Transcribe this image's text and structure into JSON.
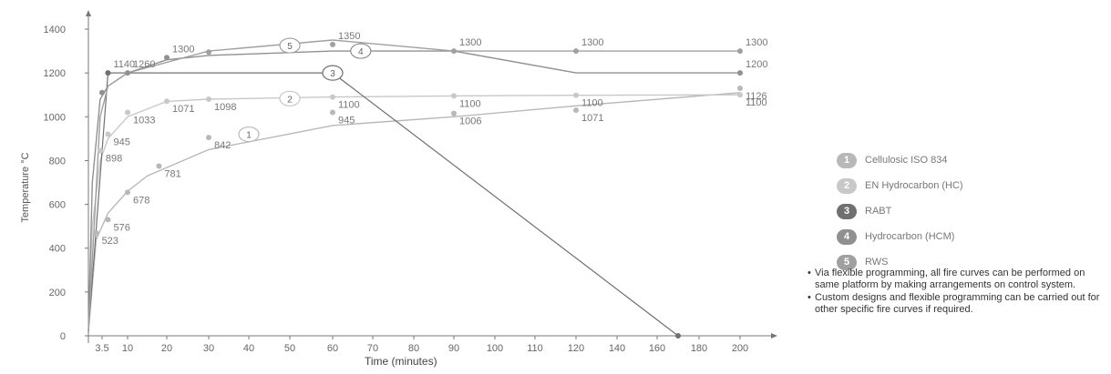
{
  "chart_data": {
    "type": "line",
    "xlabel": "Time (minutes)",
    "ylabel": "Temperature °C",
    "xlim": [
      0,
      210
    ],
    "ylim": [
      0,
      1400
    ],
    "x_ticks": [
      "3.5",
      "10",
      "20",
      "30",
      "40",
      "50",
      "60",
      "70",
      "80",
      "90",
      "100",
      "110",
      "120",
      "140",
      "160",
      "180",
      "200"
    ],
    "y_ticks": [
      "0",
      "200",
      "400",
      "600",
      "800",
      "1000",
      "1200",
      "1400"
    ],
    "series": [
      {
        "name": "Cellulosic ISO 834",
        "badge": "1",
        "color": "#b8b8b8",
        "x": [
          0,
          2,
          5,
          10,
          15,
          30,
          60,
          90,
          120,
          200
        ],
        "y": [
          20,
          440,
          560,
          660,
          730,
          850,
          960,
          1000,
          1050,
          1110
        ],
        "points": [
          {
            "x": 2,
            "y": 470,
            "label": "523"
          },
          {
            "x": 5,
            "y": 530,
            "label": "576"
          },
          {
            "x": 10,
            "y": 655,
            "label": "678"
          },
          {
            "x": 18,
            "y": 775,
            "label": "781"
          },
          {
            "x": 30,
            "y": 905,
            "label": "842"
          },
          {
            "x": 60,
            "y": 1020,
            "label": "945"
          },
          {
            "x": 90,
            "y": 1015,
            "label": "1006"
          },
          {
            "x": 120,
            "y": 1030,
            "label": "1071"
          },
          {
            "x": 200,
            "y": 1130,
            "label": "1126"
          }
        ]
      },
      {
        "name": "EN Hydrocarbon (HC)",
        "badge": "2",
        "color": "#c8c8c8",
        "x": [
          0,
          1,
          3,
          5,
          10,
          20,
          30,
          60,
          90,
          120,
          200
        ],
        "y": [
          20,
          500,
          800,
          900,
          1000,
          1070,
          1080,
          1090,
          1095,
          1098,
          1100
        ],
        "points": [
          {
            "x": 3,
            "y": 845,
            "label": "898"
          },
          {
            "x": 5,
            "y": 920,
            "label": "945"
          },
          {
            "x": 10,
            "y": 1020,
            "label": "1033"
          },
          {
            "x": 20,
            "y": 1071,
            "label": "1071"
          },
          {
            "x": 30,
            "y": 1080,
            "label": "1098"
          },
          {
            "x": 60,
            "y": 1090,
            "label": "1100"
          },
          {
            "x": 90,
            "y": 1095,
            "label": "1100"
          },
          {
            "x": 120,
            "y": 1098,
            "label": "1100"
          },
          {
            "x": 200,
            "y": 1100,
            "label": "1100"
          }
        ]
      },
      {
        "name": "RABT",
        "badge": "3",
        "color": "#707070",
        "x": [
          0,
          5,
          60,
          170
        ],
        "y": [
          20,
          1200,
          1200,
          0
        ],
        "points": [
          {
            "x": 5,
            "y": 1200,
            "label": "1140"
          },
          {
            "x": 170,
            "y": 0,
            "label": ""
          }
        ]
      },
      {
        "name": "Hydrocarbon (HCM)",
        "badge": "4",
        "color": "#909090",
        "x": [
          0,
          1,
          3,
          5,
          10,
          20,
          30,
          60,
          90,
          120,
          200
        ],
        "y": [
          20,
          700,
          1080,
          1140,
          1200,
          1260,
          1280,
          1300,
          1300,
          1200,
          1200
        ],
        "points": [
          {
            "x": 3.5,
            "y": 1110,
            "label": ""
          },
          {
            "x": 10,
            "y": 1200,
            "label": "1260"
          },
          {
            "x": 20,
            "y": 1270,
            "label": "1300"
          },
          {
            "x": 200,
            "y": 1200,
            "label": "1200"
          }
        ]
      },
      {
        "name": "RWS",
        "badge": "5",
        "color": "#a0a0a0",
        "x": [
          0,
          3,
          5,
          10,
          30,
          60,
          90,
          120,
          200
        ],
        "y": [
          20,
          1000,
          1140,
          1200,
          1300,
          1350,
          1300,
          1300,
          1300
        ],
        "points": [
          {
            "x": 30,
            "y": 1295,
            "label": ""
          },
          {
            "x": 60,
            "y": 1330,
            "label": "1350"
          },
          {
            "x": 90,
            "y": 1300,
            "label": "1300"
          },
          {
            "x": 120,
            "y": 1300,
            "label": "1300"
          },
          {
            "x": 200,
            "y": 1300,
            "label": "1300"
          }
        ]
      }
    ]
  },
  "notes": [
    "Via flexible programming, all fire curves can be performed on same platform by making arrangements on control system.",
    "Custom designs and flexible programming can be carried out for other specific fire curves if required."
  ]
}
